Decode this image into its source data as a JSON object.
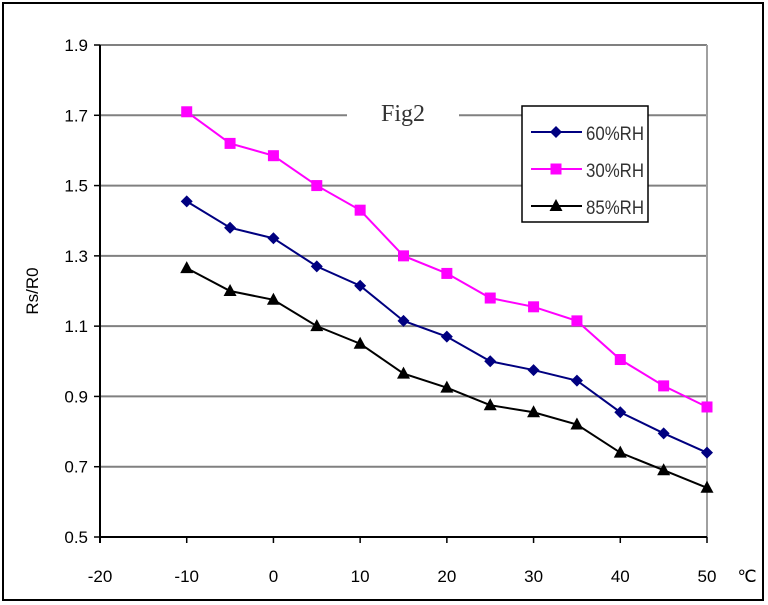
{
  "chart_data": {
    "type": "line",
    "title": "Fig2",
    "xlabel": "",
    "x_unit": "℃",
    "ylabel": "Rs/R0",
    "xlim": [
      -20,
      50
    ],
    "ylim": [
      0.5,
      1.9
    ],
    "x_ticks": [
      "-20",
      "-10",
      "0",
      "10",
      "20",
      "30",
      "40",
      "50"
    ],
    "y_ticks": [
      "0.5",
      "0.7",
      "0.9",
      "1.1",
      "1.3",
      "1.5",
      "1.7",
      "1.9"
    ],
    "grid": "horizontal",
    "legend_position": "top-right",
    "x": [
      -10,
      -5,
      0,
      5,
      10,
      15,
      20,
      25,
      30,
      35,
      40,
      45,
      50
    ],
    "series": [
      {
        "name": "60%RH",
        "color": "#000080",
        "marker": "diamond",
        "values": [
          1.455,
          1.38,
          1.35,
          1.27,
          1.215,
          1.115,
          1.07,
          1.0,
          0.975,
          0.945,
          0.855,
          0.795,
          0.74
        ]
      },
      {
        "name": "30%RH",
        "color": "#FF00FF",
        "marker": "square",
        "values": [
          1.71,
          1.62,
          1.585,
          1.5,
          1.43,
          1.3,
          1.25,
          1.18,
          1.155,
          1.115,
          1.005,
          0.93,
          0.87
        ]
      },
      {
        "name": "85%RH",
        "color": "#000000",
        "marker": "triangle",
        "values": [
          1.265,
          1.2,
          1.175,
          1.1,
          1.05,
          0.965,
          0.925,
          0.875,
          0.855,
          0.82,
          0.74,
          0.69,
          0.64
        ]
      }
    ]
  }
}
